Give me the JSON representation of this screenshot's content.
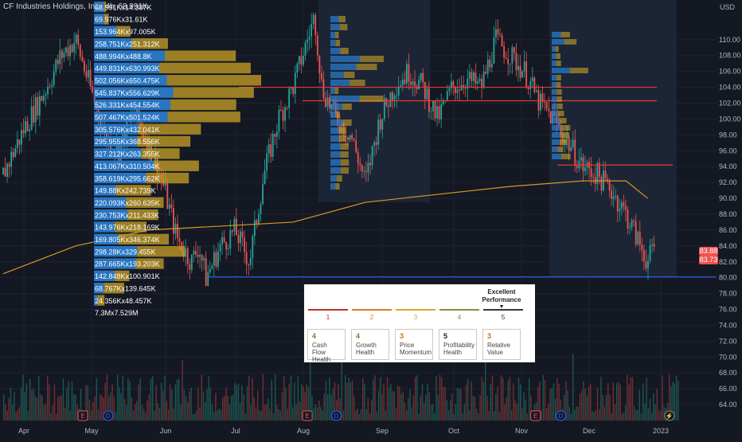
{
  "header": {
    "title": "CF Industries Holdings, Inc., 4h",
    "overlapping_text": "68.991K",
    "unit": "USD"
  },
  "colors": {
    "background": "#141823",
    "up": "#26a69a",
    "down": "#ef5350",
    "sma": "#d29922",
    "vp_up": "#2a7fd4",
    "vp_down": "#c9a227",
    "resistance": "#e53935",
    "support": "#2962ff"
  },
  "chart_data": {
    "type": "candlestick",
    "title": "CF Industries Holdings, Inc., 4h",
    "ylim": [
      62,
      115
    ],
    "y_ticks": [
      110,
      108,
      106,
      104,
      102,
      100,
      98,
      96,
      94,
      92,
      90,
      88,
      86,
      84,
      82,
      80,
      78,
      76,
      74,
      72,
      70,
      68,
      66,
      64
    ],
    "x_ticks": [
      "Apr",
      "May",
      "Jun",
      "Jul",
      "Aug",
      "Sep",
      "Oct",
      "Nov",
      "Dec",
      "2023"
    ],
    "close_path": [
      [
        0,
        93
      ],
      [
        3,
        99
      ],
      [
        6,
        104
      ],
      [
        8,
        108
      ],
      [
        10,
        110
      ],
      [
        12,
        104
      ],
      [
        14,
        98
      ],
      [
        16,
        96
      ],
      [
        18,
        101
      ],
      [
        20,
        97
      ],
      [
        22,
        92
      ],
      [
        24,
        85
      ],
      [
        26,
        82
      ],
      [
        27,
        84
      ],
      [
        28,
        80
      ],
      [
        30,
        84
      ],
      [
        32,
        86
      ],
      [
        34,
        82
      ],
      [
        36,
        93
      ],
      [
        38,
        100
      ],
      [
        40,
        104
      ],
      [
        42,
        110
      ],
      [
        43,
        113
      ],
      [
        44,
        104
      ],
      [
        46,
        100
      ],
      [
        48,
        98
      ],
      [
        50,
        92
      ],
      [
        52,
        100
      ],
      [
        54,
        104
      ],
      [
        56,
        106
      ],
      [
        58,
        104
      ],
      [
        60,
        100
      ],
      [
        62,
        104
      ],
      [
        64,
        105
      ],
      [
        66,
        104
      ],
      [
        68,
        110
      ],
      [
        70,
        108
      ],
      [
        72,
        106
      ],
      [
        74,
        102
      ],
      [
        76,
        100
      ],
      [
        78,
        97
      ],
      [
        80,
        94
      ],
      [
        82,
        93
      ],
      [
        84,
        91
      ],
      [
        86,
        88
      ],
      [
        88,
        84
      ],
      [
        89,
        82
      ],
      [
        90,
        84
      ]
    ],
    "sma_path": [
      [
        0,
        80.5
      ],
      [
        10,
        84
      ],
      [
        20,
        86
      ],
      [
        30,
        86.5
      ],
      [
        40,
        87
      ],
      [
        50,
        89.5
      ],
      [
        60,
        90.5
      ],
      [
        70,
        91.5
      ],
      [
        80,
        92.2
      ],
      [
        86,
        92.2
      ],
      [
        89,
        90
      ]
    ],
    "last_prices": [
      "83.88",
      "83.73"
    ],
    "horizontal_levels": [
      {
        "price": 104.0,
        "kind": "resistance"
      },
      {
        "price": 102.3,
        "kind": "resistance"
      },
      {
        "price": 94.2,
        "kind": "resistance"
      },
      {
        "price": 80.1,
        "kind": "support"
      }
    ],
    "volume_profile": [
      {
        "label": "68.991Kx14.387K",
        "up": 68.991,
        "down": 14.387
      },
      {
        "label": "69.976Kx31.61K",
        "up": 69.976,
        "down": 31.61
      },
      {
        "label": "153.964Kx97.005K",
        "up": 153.964,
        "down": 97.005
      },
      {
        "label": "258.751Kx251.312K",
        "up": 258.751,
        "down": 251.312
      },
      {
        "label": "488.994Kx488.8K",
        "up": 488.994,
        "down": 488.8
      },
      {
        "label": "449.831Kx630.993K",
        "up": 449.831,
        "down": 630.993
      },
      {
        "label": "502.056Kx650.475K",
        "up": 502.056,
        "down": 650.475
      },
      {
        "label": "545.837Kx556.629K",
        "up": 545.837,
        "down": 556.629
      },
      {
        "label": "526.331Kx454.554K",
        "up": 526.331,
        "down": 454.554
      },
      {
        "label": "507.467Kx501.524K",
        "up": 507.467,
        "down": 501.524
      },
      {
        "label": "305.576Kx432.041K",
        "up": 305.576,
        "down": 432.041
      },
      {
        "label": "295.955Kx368.556K",
        "up": 295.955,
        "down": 368.556
      },
      {
        "label": "327.212Kx263.355K",
        "up": 327.212,
        "down": 263.355
      },
      {
        "label": "413.067Kx310.504K",
        "up": 413.067,
        "down": 310.504
      },
      {
        "label": "358.619Kx295.662K",
        "up": 358.619,
        "down": 295.662
      },
      {
        "label": "149.88Kx242.739K",
        "up": 149.88,
        "down": 242.739
      },
      {
        "label": "220.093Kx260.635K",
        "up": 220.093,
        "down": 260.635
      },
      {
        "label": "230.753Kx211.433K",
        "up": 230.753,
        "down": 211.433
      },
      {
        "label": "143.976Kx218.169K",
        "up": 143.976,
        "down": 218.169
      },
      {
        "label": "169.805Kx346.374K",
        "up": 169.805,
        "down": 346.374
      },
      {
        "label": "298.28Kx329.455K",
        "up": 298.28,
        "down": 329.455
      },
      {
        "label": "287.665Kx193.203K",
        "up": 287.665,
        "down": 193.203
      },
      {
        "label": "142.848Kx100.901K",
        "up": 142.848,
        "down": 100.901
      },
      {
        "label": "68.767Kx139.645K",
        "up": 68.767,
        "down": 139.645
      },
      {
        "label": "24.356Kx48.457K",
        "up": 24.356,
        "down": 48.457
      },
      {
        "label": "7.3Mx7.529M",
        "up": 0,
        "down": 0
      }
    ],
    "event_markers": [
      {
        "kind": "E",
        "x": 11
      },
      {
        "kind": "D",
        "x": 14.5
      },
      {
        "kind": "E",
        "x": 42
      },
      {
        "kind": "D",
        "x": 46
      },
      {
        "kind": "E",
        "x": 73.5
      },
      {
        "kind": "D",
        "x": 77
      },
      {
        "kind": "flash",
        "x": 92
      }
    ]
  },
  "ratings_widget": {
    "excellent_label": "Excellent Performance",
    "scale": [
      {
        "num": "1",
        "color": "#b5372c"
      },
      {
        "num": "2",
        "color": "#e07b23"
      },
      {
        "num": "3",
        "color": "#d9a637"
      },
      {
        "num": "4",
        "color": "#8c8c3a"
      },
      {
        "num": "5",
        "color": "#3a3a2c"
      }
    ],
    "cards": [
      {
        "score": "4",
        "label": "Cash Flow Health",
        "color": "#8c7a1e"
      },
      {
        "score": "4",
        "label": "Growth Health",
        "color": "#8c7a1e"
      },
      {
        "score": "3",
        "label": "Price Momentum",
        "color": "#c9721b"
      },
      {
        "score": "5",
        "label": "Profitability Health",
        "color": "#222"
      },
      {
        "score": "3",
        "label": "Relative Value",
        "color": "#c9721b"
      }
    ]
  }
}
